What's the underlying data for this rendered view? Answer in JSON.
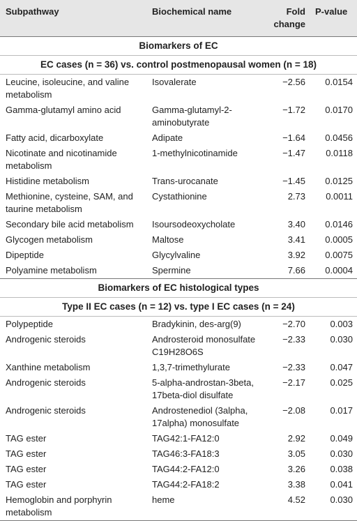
{
  "header": {
    "columns": [
      "Subpathway",
      "Biochemical name",
      "Fold change",
      "P-value"
    ]
  },
  "sections": [
    {
      "title": "Biomarkers of EC",
      "subtitle": "EC cases (n = 36) vs. control postmenopausal women (n = 18)",
      "rows": [
        [
          "Leucine, isoleucine, and valine metabolism",
          "Isovalerate",
          "−2.56",
          "0.0154"
        ],
        [
          "Gamma-glutamyl amino acid",
          "Gamma-glutamyl-2-aminobutyrate",
          "−1.72",
          "0.0170"
        ],
        [
          "Fatty acid, dicarboxylate",
          "Adipate",
          "−1.64",
          "0.0456"
        ],
        [
          "Nicotinate and nicotinamide metabolism",
          "1-methylnicotinamide",
          "−1.47",
          "0.0118"
        ],
        [
          "Histidine metabolism",
          "Trans-urocanate",
          "−1.45",
          "0.0125"
        ],
        [
          "Methionine, cysteine, SAM, and taurine metabolism",
          "Cystathionine",
          "2.73",
          "0.0011"
        ],
        [
          "Secondary bile acid metabolism",
          "Isoursodeoxycholate",
          "3.40",
          "0.0146"
        ],
        [
          "Glycogen metabolism",
          "Maltose",
          "3.41",
          "0.0005"
        ],
        [
          "Dipeptide",
          "Glycylvaline",
          "3.92",
          "0.0075"
        ],
        [
          "Polyamine metabolism",
          "Spermine",
          "7.66",
          "0.0004"
        ]
      ]
    },
    {
      "title": "Biomarkers of EC histological types",
      "subtitle": "Type II EC cases (n = 12) vs. type I EC cases (n = 24)",
      "rows": [
        [
          "Polypeptide",
          "Bradykinin, des-arg(9)",
          "−2.70",
          "0.003"
        ],
        [
          "Androgenic steroids",
          "Androsteroid monosulfate C19H28O6S",
          "−2.33",
          "0.030"
        ],
        [
          "Xanthine metabolism",
          "1,3,7-trimethylurate",
          "−2.33",
          "0.047"
        ],
        [
          "Androgenic steroids",
          "5-alpha-androstan-3beta, 17beta-diol disulfate",
          "−2.17",
          "0.025"
        ],
        [
          "Androgenic steroids",
          "Androstenediol (3alpha, 17alpha) monosulfate",
          "−2.08",
          "0.017"
        ],
        [
          "TAG ester",
          "TAG42:1-FA12:0",
          "2.92",
          "0.049"
        ],
        [
          "TAG ester",
          "TAG46:3-FA18:3",
          "3.05",
          "0.030"
        ],
        [
          "TAG ester",
          "TAG44:2-FA12:0",
          "3.26",
          "0.038"
        ],
        [
          "TAG ester",
          "TAG44:2-FA18:2",
          "3.38",
          "0.041"
        ],
        [
          "Hemoglobin and porphyrin metabolism",
          "heme",
          "4.52",
          "0.030"
        ]
      ]
    }
  ]
}
